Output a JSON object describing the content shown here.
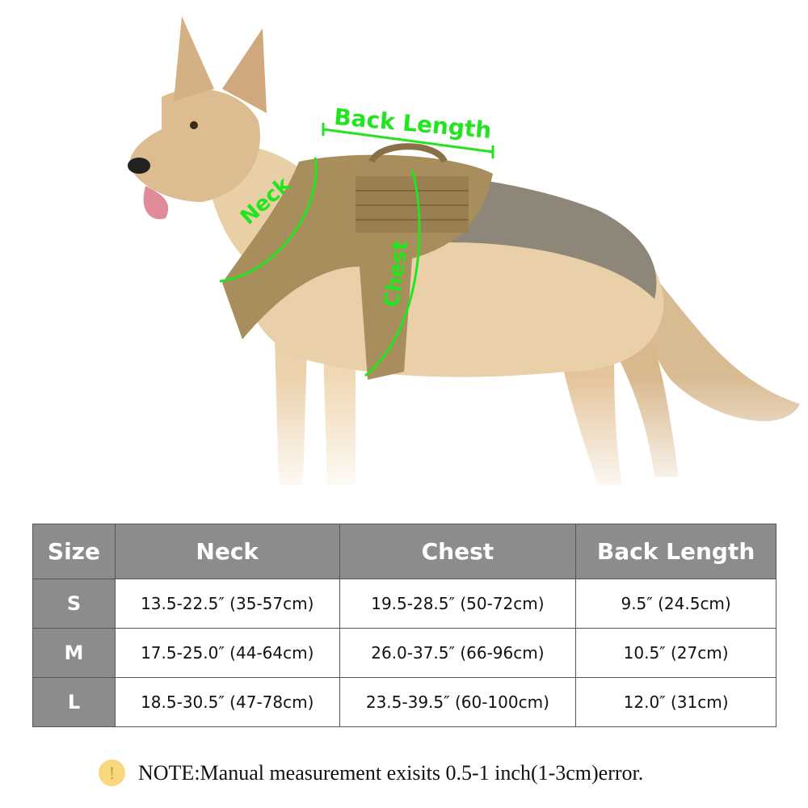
{
  "labels": {
    "back_length": "Back Length",
    "neck": "Neck",
    "chest": "Chest"
  },
  "colors": {
    "annotation": "#22e51f",
    "header_bg": "#8c8c8c",
    "harness": "#a88d5d"
  },
  "table": {
    "headers": [
      "Size",
      "Neck",
      "Chest",
      "Back Length"
    ],
    "rows": [
      {
        "size": "S",
        "neck": "13.5-22.5″  (35-57cm)",
        "chest": "19.5-28.5″  (50-72cm)",
        "back": "9.5″  (24.5cm)"
      },
      {
        "size": "M",
        "neck": "17.5-25.0″  (44-64cm)",
        "chest": "26.0-37.5″  (66-96cm)",
        "back": "10.5″  (27cm)"
      },
      {
        "size": "L",
        "neck": "18.5-30.5″  (47-78cm)",
        "chest": "23.5-39.5″  (60-100cm)",
        "back": "12.0″  (31cm)"
      }
    ]
  },
  "note": {
    "icon": "exclamation-icon",
    "icon_glyph": "!",
    "text": "NOTE:Manual measurement exisits 0.5-1 inch(1-3cm)error."
  }
}
